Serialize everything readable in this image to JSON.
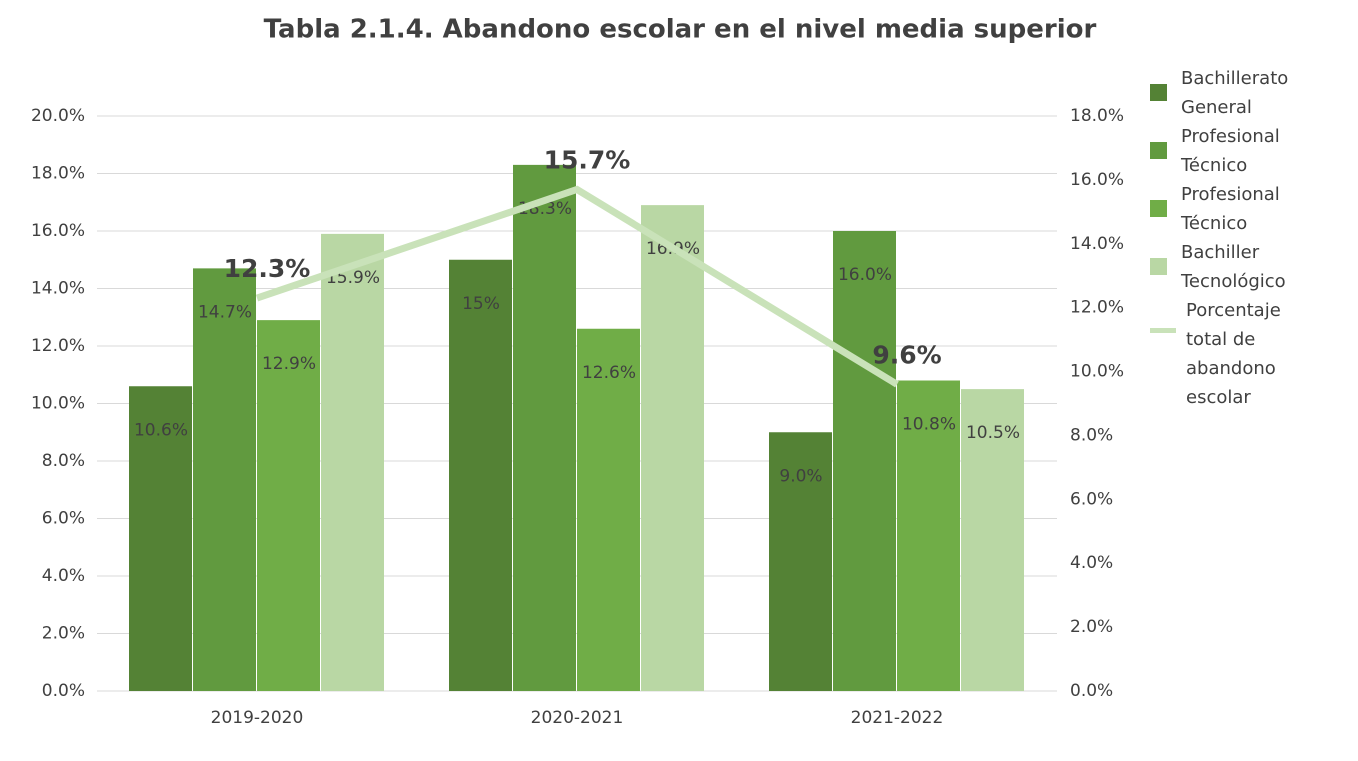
{
  "chart_data": {
    "type": "bar",
    "title": "Tabla 2.1.4. Abandono escolar en el nivel media superior",
    "categories": [
      "2019-2020",
      "2020-2021",
      "2021-2022"
    ],
    "series": [
      {
        "name": "Bachillerato General",
        "color": "#548235",
        "values": [
          10.6,
          15,
          9.0
        ],
        "value_labels": [
          "10.6%",
          "15%",
          "9.0%"
        ]
      },
      {
        "name": "Profesional Técnico",
        "color": "#619a3f",
        "values": [
          14.7,
          18.3,
          16.0
        ],
        "value_labels": [
          "14.7%",
          "18.3%",
          "16.0%"
        ]
      },
      {
        "name": "Profesional Técnico",
        "color": "#70ad47",
        "values": [
          12.9,
          12.6,
          10.8
        ],
        "value_labels": [
          "12.9%",
          "12.6%",
          "10.8%"
        ]
      },
      {
        "name": "Bachiller Tecnológico",
        "color": "#b9d7a4",
        "values": [
          15.9,
          16.9,
          10.5
        ],
        "value_labels": [
          "15.9%",
          "16.9%",
          "10.5%"
        ]
      },
      {
        "name": "Porcentaje total de abandono escolar",
        "color": "#c9e2b9",
        "type": "line",
        "axis": "y2",
        "values": [
          12.3,
          15.7,
          9.6
        ],
        "value_labels": [
          "12.3%",
          "15.7%",
          "9.6%"
        ]
      }
    ],
    "ylim": [
      0,
      20
    ],
    "yticks": [
      {
        "value": 0,
        "label": "0.0%"
      },
      {
        "value": 2,
        "label": "2.0%"
      },
      {
        "value": 4,
        "label": "4.0%"
      },
      {
        "value": 6,
        "label": "6.0%"
      },
      {
        "value": 8,
        "label": "8.0%"
      },
      {
        "value": 10,
        "label": "10.0%"
      },
      {
        "value": 12,
        "label": "12.0%"
      },
      {
        "value": 14,
        "label": "14.0%"
      },
      {
        "value": 16,
        "label": "16.0%"
      },
      {
        "value": 18,
        "label": "18.0%"
      },
      {
        "value": 20,
        "label": "20.0%"
      }
    ],
    "y2lim": [
      0,
      18
    ],
    "y2ticks": [
      {
        "value": 0,
        "label": "0.0%"
      },
      {
        "value": 2,
        "label": "2.0%"
      },
      {
        "value": 4,
        "label": "4.0%"
      },
      {
        "value": 6,
        "label": "6.0%"
      },
      {
        "value": 8,
        "label": "8.0%"
      },
      {
        "value": 10,
        "label": "10.0%"
      },
      {
        "value": 12,
        "label": "12.0%"
      },
      {
        "value": 14,
        "label": "14.0%"
      },
      {
        "value": 16,
        "label": "16.0%"
      },
      {
        "value": 18,
        "label": "18.0%"
      }
    ],
    "grid": true,
    "legend": "right"
  }
}
